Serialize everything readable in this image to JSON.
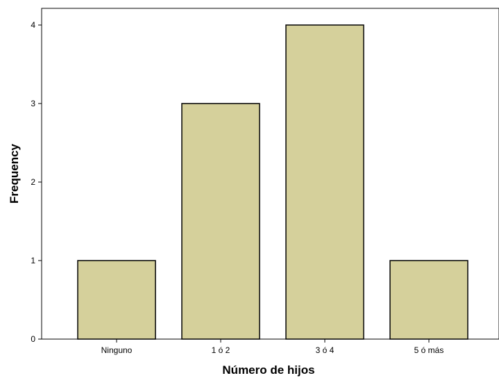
{
  "chart_data": {
    "type": "bar",
    "categories": [
      "Ninguno",
      "1 ó 2",
      "3 ó 4",
      "5 ó más"
    ],
    "values": [
      1,
      3,
      4,
      1
    ],
    "title": "",
    "xlabel": "Número de hijos",
    "ylabel": "Frequency",
    "ylim": [
      0,
      4
    ],
    "yticks": [
      0,
      1,
      2,
      3,
      4
    ],
    "bar_color": "#d5d09b",
    "bar_edge_color": "#000000",
    "grid": false,
    "legend": "none"
  }
}
